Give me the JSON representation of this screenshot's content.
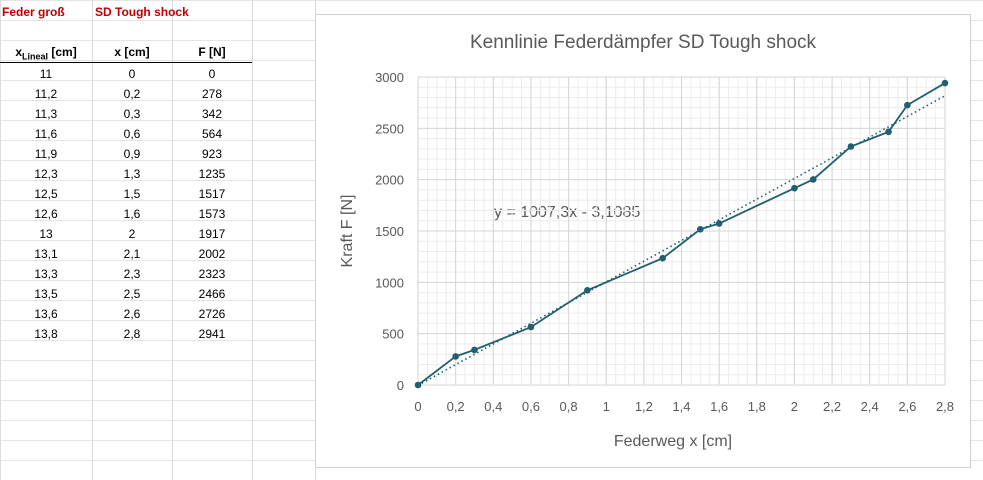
{
  "sheet": {
    "label_feder": "Feder groß",
    "label_model": "SD Tough shock",
    "headers": {
      "x_lineal_main": "x",
      "x_lineal_sub": "Lineal",
      "x_lineal_unit": " [cm]",
      "x": "x [cm]",
      "f": "F [N]"
    },
    "rows": [
      {
        "xl": "11",
        "x": "0",
        "f": "0"
      },
      {
        "xl": "11,2",
        "x": "0,2",
        "f": "278"
      },
      {
        "xl": "11,3",
        "x": "0,3",
        "f": "342"
      },
      {
        "xl": "11,6",
        "x": "0,6",
        "f": "564"
      },
      {
        "xl": "11,9",
        "x": "0,9",
        "f": "923"
      },
      {
        "xl": "12,3",
        "x": "1,3",
        "f": "1235"
      },
      {
        "xl": "12,5",
        "x": "1,5",
        "f": "1517"
      },
      {
        "xl": "12,6",
        "x": "1,6",
        "f": "1573"
      },
      {
        "xl": "13",
        "x": "2",
        "f": "1917"
      },
      {
        "xl": "13,1",
        "x": "2,1",
        "f": "2002"
      },
      {
        "xl": "13,3",
        "x": "2,3",
        "f": "2323"
      },
      {
        "xl": "13,5",
        "x": "2,5",
        "f": "2466"
      },
      {
        "xl": "13,6",
        "x": "2,6",
        "f": "2726"
      },
      {
        "xl": "13,8",
        "x": "2,8",
        "f": "2941"
      }
    ]
  },
  "chart_data": {
    "type": "scatter",
    "title": "Kennlinie Federdämpfer SD Tough shock",
    "xlabel": "Federweg x [cm]",
    "ylabel": "Kraft F [N]",
    "xlim": [
      0,
      2.8
    ],
    "ylim": [
      0,
      3000
    ],
    "x_ticks": [
      "0",
      "0,2",
      "0,4",
      "0,6",
      "0,8",
      "1",
      "1,2",
      "1,4",
      "1,6",
      "1,8",
      "2",
      "2,2",
      "2,4",
      "2,6",
      "2,8"
    ],
    "y_ticks": [
      "0",
      "500",
      "1000",
      "1500",
      "2000",
      "2500",
      "3000"
    ],
    "grid": true,
    "series": [
      {
        "x": [
          0,
          0.2,
          0.3,
          0.6,
          0.9,
          1.3,
          1.5,
          1.6,
          2.0,
          2.1,
          2.3,
          2.5,
          2.6,
          2.8
        ],
        "y": [
          0,
          278,
          342,
          564,
          923,
          1235,
          1517,
          1573,
          1917,
          2002,
          2323,
          2466,
          2726,
          2941
        ],
        "color": "#1f5f6e"
      }
    ],
    "trendline": {
      "slope": 1007.3,
      "intercept": -3.1085,
      "label": "y = 1007,3x - 3,1085",
      "style": "dotted",
      "color": "#1f5f6e"
    }
  }
}
